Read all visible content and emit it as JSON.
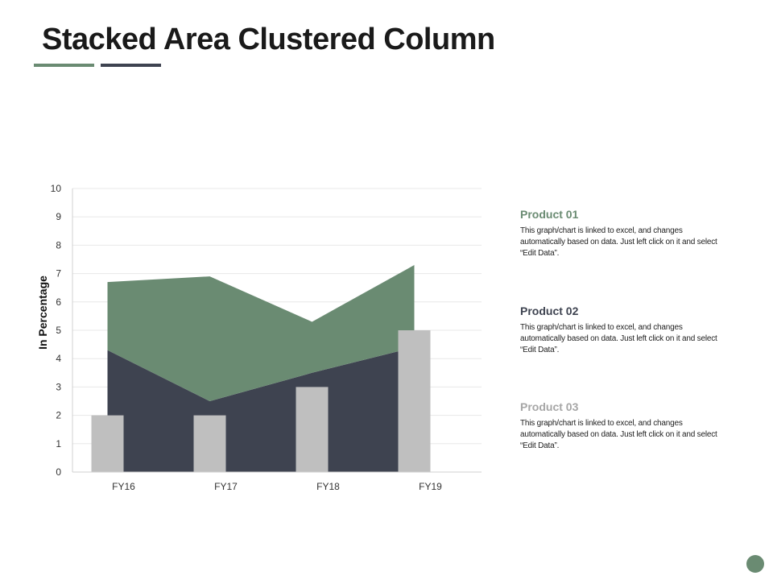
{
  "title": "Stacked Area Clustered Column",
  "colors": {
    "product01": "#6a8b72",
    "product02": "#3e4350",
    "product03": "#bfbfbf",
    "title_underline_1": "#6a8b72",
    "title_underline_2": "#3e4350"
  },
  "chart_data": {
    "type": "area",
    "title": "",
    "ylabel": "In Percentage",
    "xlabel": "",
    "ylim": [
      0,
      10
    ],
    "yticks": [
      0,
      1,
      2,
      3,
      4,
      5,
      6,
      7,
      8,
      9,
      10
    ],
    "categories": [
      "FY16",
      "FY17",
      "FY18",
      "FY19"
    ],
    "grid": true,
    "series": [
      {
        "name": "Product 02",
        "type": "stacked-area",
        "values": [
          4.3,
          2.5,
          3.5,
          4.4
        ]
      },
      {
        "name": "Product 01",
        "type": "stacked-area",
        "values": [
          2.4,
          4.4,
          1.8,
          2.9
        ]
      },
      {
        "name": "Product 03",
        "type": "column",
        "values": [
          2,
          2,
          3,
          5
        ]
      }
    ]
  },
  "legend": [
    {
      "title": "Product 01",
      "desc": "This graph/chart is linked to excel, and changes automatically based on data. Just left click on it and select “Edit Data”.",
      "color": "#6a8b72"
    },
    {
      "title": "Product 02",
      "desc": "This graph/chart is linked to excel, and changes automatically based on data. Just left click on it and select “Edit Data”.",
      "color": "#3e4350"
    },
    {
      "title": "Product 03",
      "desc": "This graph/chart is linked to excel, and changes automatically based on data. Just left click on it and select “Edit Data”.",
      "color": "#a6a6a6"
    }
  ]
}
